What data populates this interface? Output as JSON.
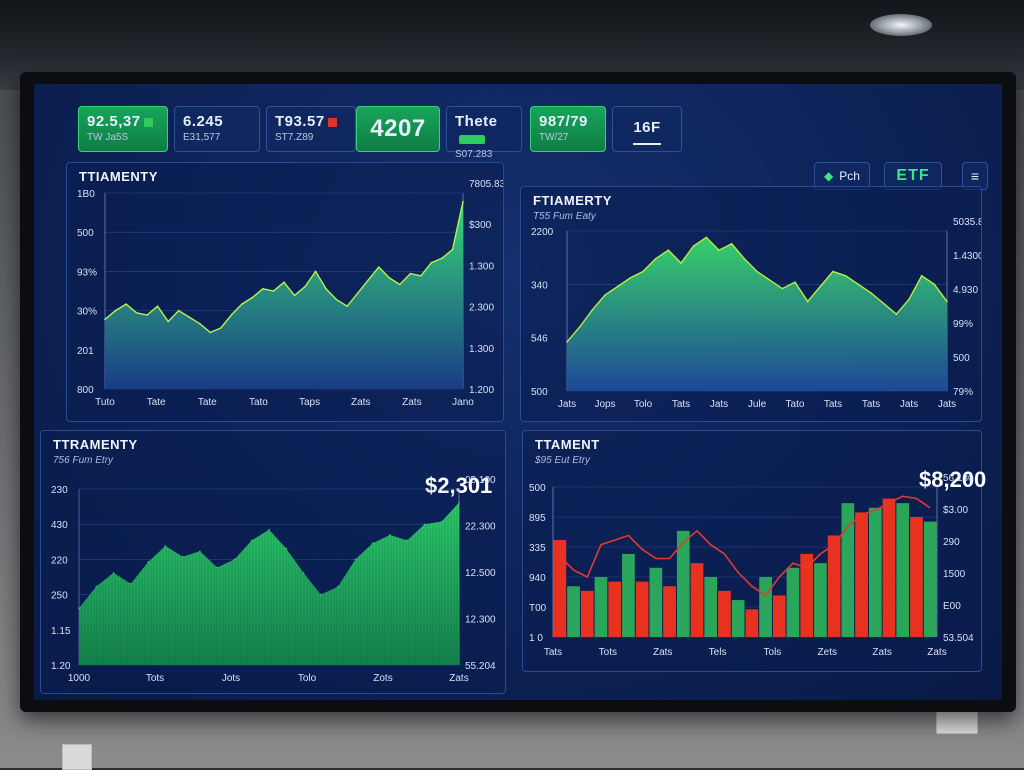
{
  "tickers": [
    {
      "main": "92.5,37",
      "sub": "TW Ja5S",
      "style": "green",
      "marker": "green-dot"
    },
    {
      "main": "6.245",
      "sub": "E31,577",
      "style": "dark"
    },
    {
      "main": "T93.57",
      "sub": "ST7.Z89",
      "style": "dark",
      "marker": "red-dot"
    },
    {
      "main": "4207",
      "sub": "",
      "style": "green-big"
    },
    {
      "main": "Thete",
      "sub": "S07.283",
      "style": "dark",
      "marker": "green-bar"
    },
    {
      "main": "987/79",
      "sub": "TW/27",
      "style": "green"
    },
    {
      "main": "16F",
      "sub": "",
      "style": "dark"
    }
  ],
  "toolbar": {
    "buy_label": "Pch",
    "etf_label": "ETF",
    "menu_icon": "hamburger-menu-icon",
    "buy_icon": "diamond-icon"
  },
  "panels": {
    "top_left": {
      "title": "TTIAMENTY",
      "left_ticks": [
        "1B0",
        "500",
        "93%",
        "30%",
        "201",
        "800"
      ],
      "right_ticks": [
        "7805.831",
        "$300",
        "1.300",
        "2.300",
        "1.300",
        "1.200"
      ],
      "x_ticks": [
        "Tuto",
        "Tate",
        "Tate",
        "Tato",
        "Taps",
        "Zats",
        "Zats",
        "Jano"
      ]
    },
    "top_right": {
      "title": "FTIAMERTY",
      "subtitle": "T55 Fum Eaty",
      "left_ticks": [
        "2200",
        "340",
        "546",
        "500"
      ],
      "right_ticks": [
        "5035.80",
        "1.4300",
        "4.930",
        "99%",
        "500",
        "79%"
      ],
      "x_ticks": [
        "Jats",
        "Jops",
        "Tolo",
        "Tats",
        "Jats",
        "Jule",
        "Tato",
        "Tats",
        "Tats",
        "Jats",
        "Jats"
      ]
    },
    "bottom_left": {
      "title": "TTRAMENTY",
      "subtitle": "756 Fum Etry",
      "price": "$2,301",
      "left_ticks": [
        "230",
        "430",
        "220",
        "250",
        "1.15",
        "1.20"
      ],
      "right_ticks": [
        "05.100",
        "22.300",
        "12.500",
        "12.300",
        "55.204"
      ],
      "x_ticks": [
        "1000",
        "Tots",
        "Jots",
        "Tolo",
        "Zots",
        "Zats"
      ]
    },
    "bottom_right": {
      "title": "TTAMENT",
      "subtitle": "$95 Eut Etry",
      "price": "$8,200",
      "left_ticks": [
        "500",
        "895",
        "335",
        "940",
        "T00",
        "1 0"
      ],
      "right_ticks": [
        "56.130",
        "$3.00",
        "290",
        "1500",
        "E00",
        "53.504"
      ],
      "x_ticks": [
        "Tats",
        "Tots",
        "Zats",
        "Tels",
        "Tols",
        "Zets",
        "Zats",
        "Zats"
      ]
    }
  },
  "chart_data": [
    {
      "type": "area",
      "title": "TTIAMENTY",
      "series": [
        {
          "values": [
            3.2,
            3.6,
            3.9,
            3.5,
            3.4,
            3.8,
            3.1,
            3.6,
            3.3,
            3.0,
            2.6,
            2.8,
            3.4,
            3.9,
            4.2,
            4.6,
            4.5,
            4.9,
            4.3,
            4.7,
            5.4,
            4.6,
            4.1,
            3.8,
            4.4,
            5.0,
            5.6,
            5.1,
            4.8,
            5.3,
            5.2,
            5.8,
            6.0,
            6.4,
            8.6
          ]
        }
      ],
      "colors": {
        "fill_top": "#38e07a",
        "fill_bottom": "#1a3d88",
        "line": "#b7f24a"
      }
    },
    {
      "type": "area",
      "title": "FTIAMERTY",
      "series": [
        {
          "values": [
            2.3,
            3.0,
            3.8,
            4.5,
            4.9,
            5.3,
            5.6,
            6.2,
            6.6,
            6.0,
            6.8,
            7.2,
            6.6,
            6.9,
            6.2,
            5.6,
            5.2,
            4.8,
            5.1,
            4.2,
            4.9,
            5.6,
            5.4,
            5.0,
            4.6,
            4.1,
            3.6,
            4.3,
            5.4,
            5.0,
            4.2
          ]
        }
      ],
      "colors": {
        "fill_top": "#3ad86b",
        "fill_bottom": "#1d4a9a",
        "line": "#b5f03f"
      }
    },
    {
      "type": "area",
      "title": "TTRAMENTY",
      "series": [
        {
          "values": [
            2.1,
            2.9,
            3.4,
            3.0,
            3.8,
            4.4,
            4.0,
            4.2,
            3.6,
            3.9,
            4.6,
            5.0,
            4.3,
            3.4,
            2.6,
            2.9,
            3.9,
            4.5,
            4.8,
            4.6,
            5.2,
            5.3,
            6.0
          ]
        }
      ],
      "colors": {
        "fill_top": "#2ed46a",
        "fill_bottom": "#148a4a"
      }
    },
    {
      "type": "bar",
      "title": "TTAMENT",
      "series": [
        {
          "values": [
            4.2,
            2.2,
            2.0,
            2.6,
            2.4,
            3.6,
            2.4,
            3.0,
            2.2,
            4.6,
            3.2,
            2.6,
            2.0,
            1.6,
            1.2,
            2.6,
            1.8,
            3.0,
            3.6,
            3.2,
            4.4,
            5.8,
            5.4,
            5.6,
            6.0,
            5.8,
            5.2,
            5.0
          ]
        },
        {
          "values": [
            3.5,
            2.9,
            2.6,
            4.0,
            4.2,
            4.4,
            3.8,
            3.4,
            3.4,
            4.1,
            4.6,
            4.0,
            3.6,
            2.8,
            2.2,
            1.8,
            2.6,
            3.2,
            3.0,
            3.6,
            4.0,
            4.8,
            5.3,
            5.5,
            5.8,
            6.1,
            6.0,
            5.6
          ]
        }
      ],
      "colors": {
        "up": "#2aa65a",
        "down": "#e8321f",
        "line": "#e23a2e"
      }
    }
  ]
}
